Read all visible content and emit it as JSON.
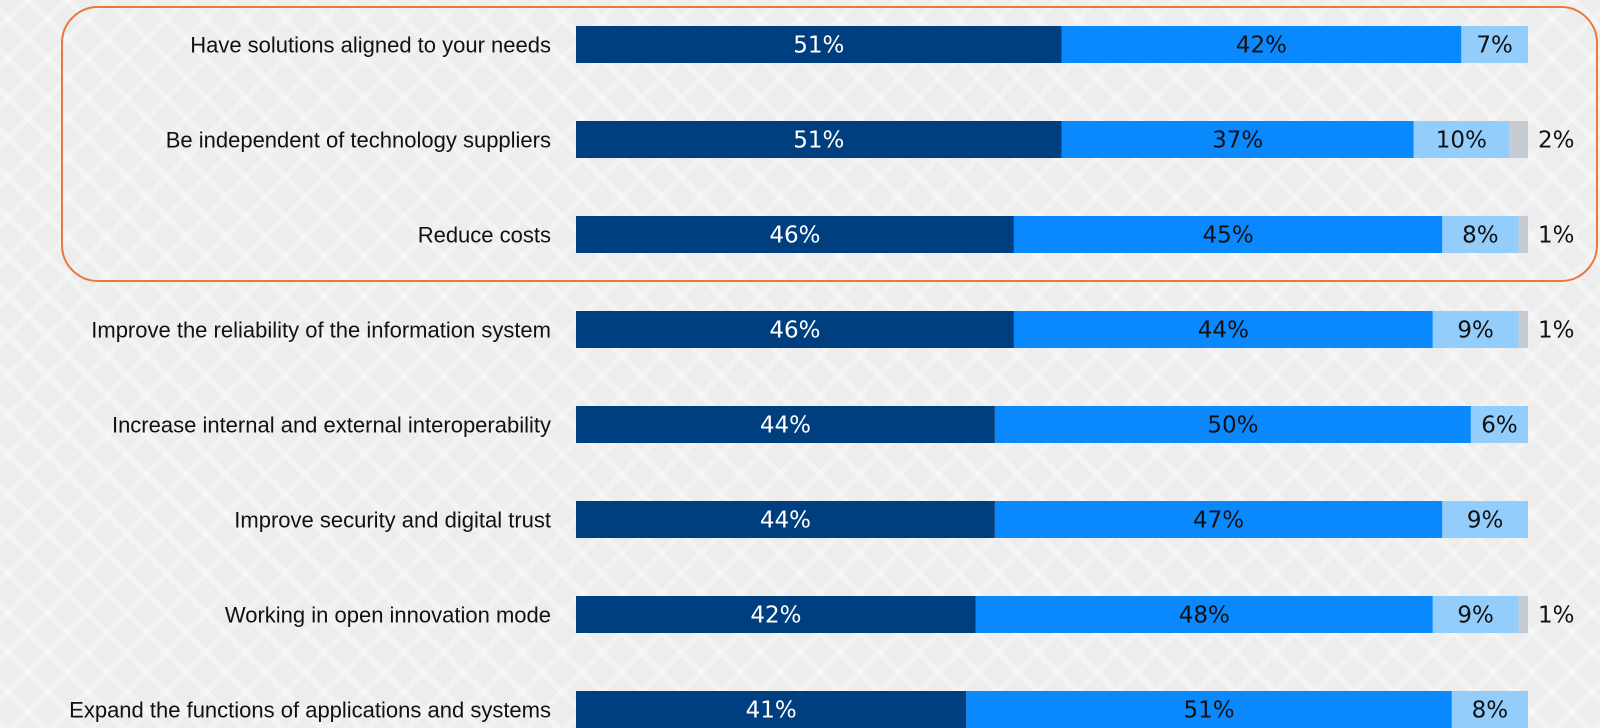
{
  "chart_data": {
    "type": "bar",
    "orientation": "horizontal",
    "stacked": true,
    "grid": false,
    "legend": "none",
    "xlim": [
      0,
      100
    ],
    "categories": [
      "Have solutions aligned to your needs",
      "Be independent of technology suppliers",
      "Reduce costs",
      "Improve the reliability of the information system",
      "Increase internal and external interoperability",
      "Improve security and digital trust",
      "Working in open innovation mode",
      "Expand the functions of applications and systems"
    ],
    "series": [
      {
        "color": "#003f7f",
        "text_color": "#ffffff",
        "values": [
          51,
          51,
          46,
          46,
          44,
          44,
          42,
          41
        ]
      },
      {
        "color": "#0a89ff",
        "text_color": "#111111",
        "values": [
          42,
          37,
          45,
          44,
          50,
          47,
          48,
          51
        ]
      },
      {
        "color": "#93cdfb",
        "text_color": "#111111",
        "values": [
          7,
          10,
          8,
          9,
          6,
          9,
          9,
          8
        ]
      },
      {
        "color": "#c5cbd2",
        "text_color": "#111111",
        "values": [
          0,
          2,
          1,
          1,
          0,
          0,
          1,
          0
        ]
      }
    ],
    "value_labels": [
      [
        "51%",
        "42%",
        "7%",
        ""
      ],
      [
        "51%",
        "37%",
        "10%",
        "2%"
      ],
      [
        "46%",
        "45%",
        "8%",
        "1%"
      ],
      [
        "46%",
        "44%",
        "9%",
        "1%"
      ],
      [
        "44%",
        "50%",
        "6%",
        ""
      ],
      [
        "44%",
        "47%",
        "9%",
        ""
      ],
      [
        "42%",
        "48%",
        "9%",
        "1%"
      ],
      [
        "41%",
        "51%",
        "8%",
        ""
      ]
    ],
    "highlight": {
      "categories": [
        0,
        1,
        2
      ],
      "color": "#e8793a"
    }
  }
}
